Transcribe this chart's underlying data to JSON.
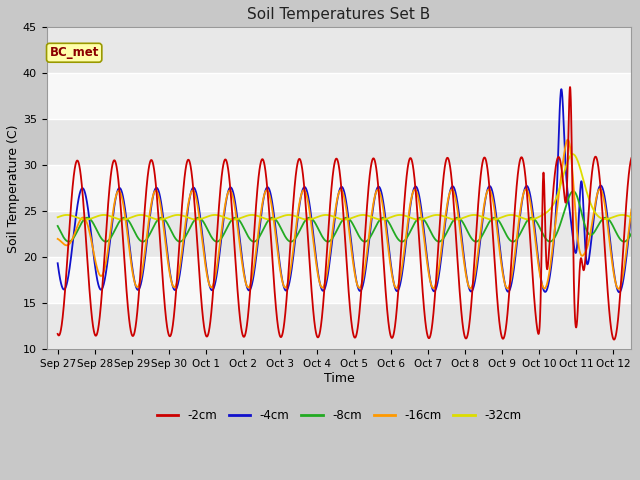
{
  "title": "Soil Temperatures Set B",
  "xlabel": "Time",
  "ylabel": "Soil Temperature (C)",
  "ylim": [
    10,
    45
  ],
  "xlim": [
    -0.3,
    15.5
  ],
  "annotation": "BC_met",
  "series_colors": [
    "#cc0000",
    "#1111cc",
    "#22aa22",
    "#ff9900",
    "#dddd00"
  ],
  "series_labels": [
    "-2cm",
    "-4cm",
    "-8cm",
    "-16cm",
    "-32cm"
  ],
  "xtick_labels": [
    "Sep 27",
    "Sep 28",
    "Sep 29",
    "Sep 30",
    "Oct 1",
    "Oct 2",
    "Oct 3",
    "Oct 4",
    "Oct 5",
    "Oct 6",
    "Oct 7",
    "Oct 8",
    "Oct 9",
    "Oct 10",
    "Oct 11",
    "Oct 12"
  ],
  "xtick_positions": [
    0,
    1,
    2,
    3,
    4,
    5,
    6,
    7,
    8,
    9,
    10,
    11,
    12,
    13,
    14,
    15
  ],
  "fig_bg": "#c8c8c8",
  "plot_bg": "#f0f0f0",
  "band_color": "#e0e0e0",
  "band_low": 17.5,
  "band_high": 39.0,
  "grid_color": "#ffffff",
  "figwidth": 6.4,
  "figheight": 4.8,
  "dpi": 100
}
